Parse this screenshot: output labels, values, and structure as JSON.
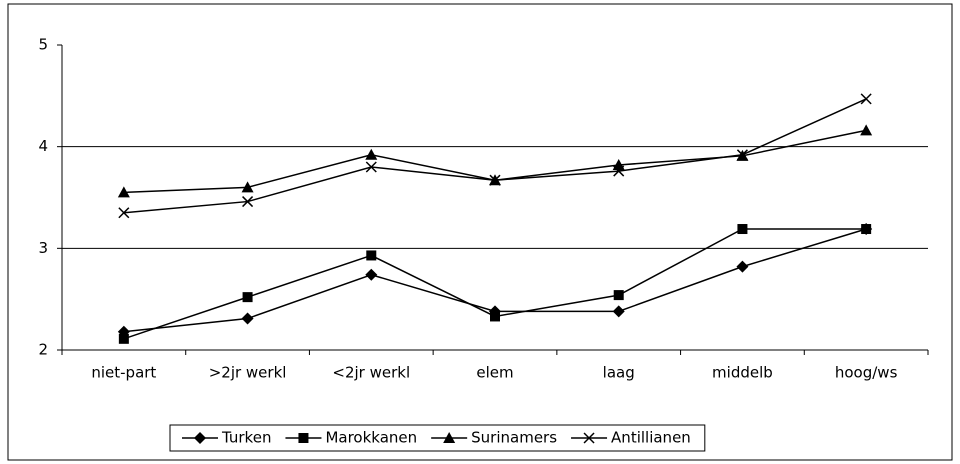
{
  "chart_data": {
    "type": "line",
    "categories": [
      "niet-part",
      ">2jr werkl",
      "<2jr werkl",
      "elem",
      "laag",
      "middelb",
      "hoog/ws"
    ],
    "series": [
      {
        "name": "Turken",
        "color": "#000000",
        "marker": "diamond",
        "values": [
          2.18,
          2.31,
          2.74,
          2.38,
          2.38,
          2.82,
          3.19
        ]
      },
      {
        "name": "Marokkanen",
        "color": "#000000",
        "marker": "square",
        "values": [
          2.11,
          2.52,
          2.93,
          2.33,
          2.54,
          3.19,
          3.19
        ]
      },
      {
        "name": "Surinamers",
        "color": "#000000",
        "marker": "triangle",
        "values": [
          3.55,
          3.6,
          3.92,
          3.67,
          3.82,
          3.91,
          4.16
        ]
      },
      {
        "name": "Antillianen",
        "color": "#000000",
        "marker": "x",
        "values": [
          3.35,
          3.46,
          3.8,
          3.67,
          3.76,
          3.92,
          4.47
        ]
      }
    ],
    "ylim": [
      2,
      5
    ],
    "yticks": [
      2,
      3,
      4,
      5
    ],
    "grid": true,
    "legend": "bottom"
  }
}
